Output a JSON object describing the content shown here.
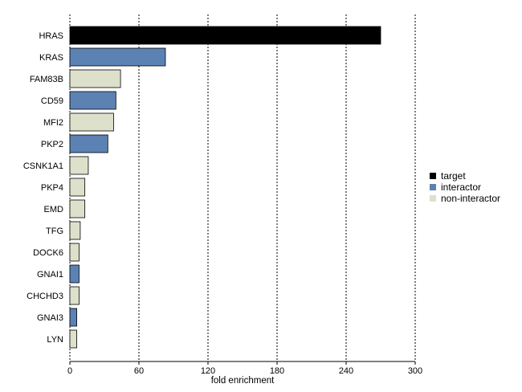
{
  "chart_data": {
    "type": "bar",
    "orientation": "horizontal",
    "xlabel": "fold enrichment",
    "ylabel": "",
    "xlim": [
      0,
      300
    ],
    "xticks": [
      0,
      60,
      120,
      180,
      240,
      300
    ],
    "grid": "vertical dotted",
    "legend_position": "right",
    "categories": [
      "HRAS",
      "KRAS",
      "FAM83B",
      "CD59",
      "MFI2",
      "PKP2",
      "CSNK1A1",
      "PKP4",
      "EMD",
      "TFG",
      "DOCK6",
      "GNAI1",
      "CHCHD3",
      "GNAI3",
      "LYN"
    ],
    "values": [
      270,
      83,
      44,
      40,
      38,
      33,
      16,
      13,
      13,
      9,
      8,
      8,
      8,
      6,
      6
    ],
    "groups": [
      "target",
      "interactor",
      "non-interactor",
      "interactor",
      "non-interactor",
      "interactor",
      "non-interactor",
      "non-interactor",
      "non-interactor",
      "non-interactor",
      "non-interactor",
      "interactor",
      "non-interactor",
      "interactor",
      "non-interactor"
    ],
    "legend": [
      {
        "name": "target",
        "color": "#000000"
      },
      {
        "name": "interactor",
        "color": "#5b82b3"
      },
      {
        "name": "non-interactor",
        "color": "#dde1cb"
      }
    ]
  }
}
